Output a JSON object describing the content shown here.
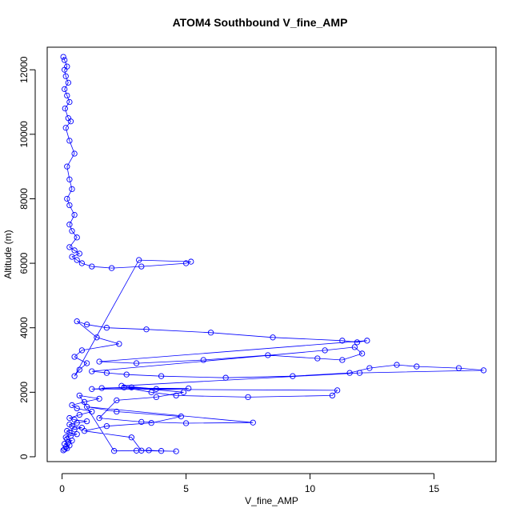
{
  "chart_data": {
    "type": "scatter",
    "title": "ATOM4 Southbound V_fine_AMP",
    "xlabel": "V_fine_AMP",
    "ylabel": "Altitude (m)",
    "xlim": [
      -0.6,
      17.5
    ],
    "ylim": [
      -150,
      12700
    ],
    "x_ticks": [
      0,
      5,
      10,
      15
    ],
    "y_ticks": [
      0,
      2000,
      4000,
      6000,
      8000,
      10000,
      12000
    ],
    "grid": false,
    "legend": "none",
    "marker": "open-circle",
    "connected": true,
    "color": "#0000ff",
    "series": [
      {
        "x": [
          0.05,
          0.1,
          0.2,
          0.15,
          0.3,
          0.1,
          0.25,
          0.4,
          0.2,
          0.15,
          0.35,
          0.6,
          0.3,
          0.2,
          0.5,
          0.8,
          0.4,
          0.3,
          0.6,
          1.0,
          0.5,
          0.3,
          0.7,
          1.2,
          0.6,
          0.4,
          0.9,
          1.5,
          0.7,
          2.1,
          3.0,
          3.5,
          4.0,
          4.6,
          3.2,
          2.8,
          0.9,
          1.8,
          3.6,
          4.8,
          2.2,
          1.0,
          7.7,
          5.0,
          3.2,
          1.5,
          2.2,
          3.8,
          4.9,
          2.8,
          1.2,
          11.1,
          10.9,
          7.5,
          4.6,
          3.6,
          2.5,
          1.6,
          5.1,
          3.8,
          2.4,
          12.0,
          17.0,
          16.0,
          14.3,
          13.5,
          12.4,
          11.6,
          9.3,
          6.6,
          4.0,
          2.6,
          1.8,
          1.2,
          10.6,
          11.8,
          12.1,
          11.3,
          10.3,
          8.3,
          5.7,
          3.0,
          1.5,
          12.3,
          11.9,
          11.3,
          8.5,
          6.0,
          3.4,
          1.8,
          1.0,
          0.6,
          1.4,
          2.3,
          0.8,
          0.5,
          1.0,
          0.7,
          0.5,
          3.1,
          5.2,
          5.0,
          3.2,
          2.0,
          1.2,
          0.8,
          0.6,
          0.4,
          0.7,
          0.5,
          0.3,
          0.6,
          0.4,
          0.3,
          0.5,
          0.3,
          0.2,
          0.4,
          0.3,
          0.2,
          0.5,
          0.3,
          0.15,
          0.35,
          0.25,
          0.12,
          0.3,
          0.2,
          0.1,
          0.25,
          0.15,
          0.1,
          0.2,
          0.1,
          0.05
        ],
        "y": [
          200,
          230,
          260,
          300,
          350,
          400,
          450,
          500,
          550,
          600,
          650,
          700,
          750,
          800,
          850,
          900,
          950,
          1000,
          1050,
          1100,
          1150,
          1200,
          1300,
          1400,
          1500,
          1600,
          1700,
          1800,
          1900,
          180,
          190,
          200,
          180,
          170,
          190,
          600,
          800,
          950,
          1050,
          1250,
          1400,
          1550,
          1060,
          1040,
          1080,
          1200,
          1750,
          1850,
          2000,
          2150,
          2100,
          2060,
          1900,
          1850,
          1900,
          2000,
          2150,
          2130,
          2120,
          2100,
          2200,
          2600,
          2680,
          2750,
          2800,
          2850,
          2750,
          2600,
          2500,
          2450,
          2500,
          2550,
          2600,
          2650,
          3300,
          3400,
          3200,
          3000,
          3050,
          3150,
          3000,
          2900,
          2950,
          3600,
          3550,
          3600,
          3700,
          3850,
          3950,
          4000,
          4100,
          4200,
          3700,
          3500,
          3300,
          3100,
          2900,
          2700,
          2500,
          6100,
          6050,
          6000,
          5900,
          5850,
          5900,
          6000,
          6100,
          6200,
          6300,
          6400,
          6500,
          6800,
          7000,
          7200,
          7500,
          7800,
          8000,
          8300,
          8600,
          9000,
          9400,
          9800,
          10200,
          10400,
          10500,
          10800,
          11000,
          11200,
          11400,
          11600,
          11800,
          12000,
          12100,
          12300,
          12400
        ]
      }
    ]
  }
}
